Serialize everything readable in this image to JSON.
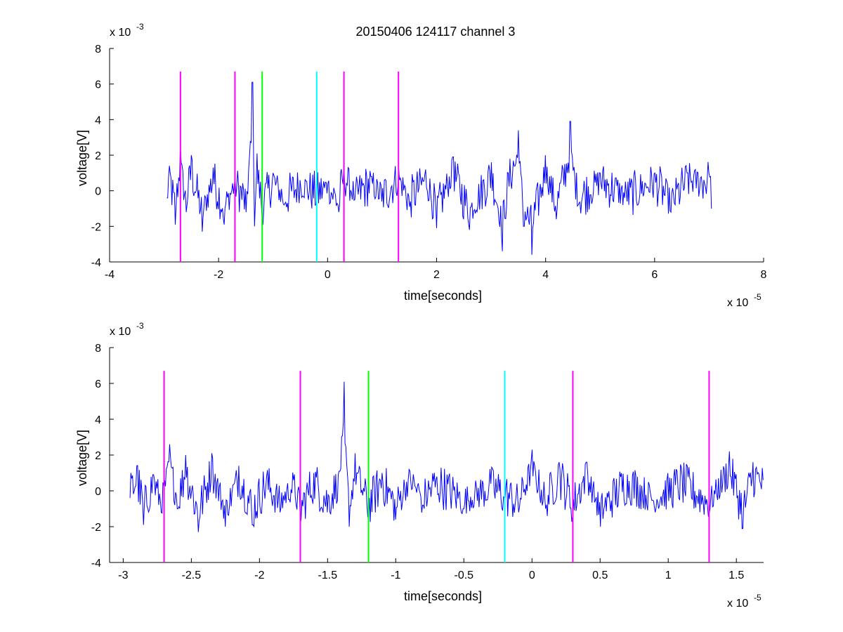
{
  "figure_title": "20150406 124117 channel 3",
  "colors": {
    "signal": "#0000ff",
    "marker_magenta": "#ff00ff",
    "marker_green": "#00ff00",
    "marker_cyan": "#00ffff",
    "axis": "#000000"
  },
  "chart_data": [
    {
      "type": "line",
      "title": "20150406 124117 channel 3",
      "xlabel": "time[seconds]",
      "ylabel": "voltage[V]",
      "x_multiplier": "x 10",
      "x_exponent": "-5",
      "y_multiplier": "x 10",
      "y_exponent": "-3",
      "xlim": [
        -4,
        8
      ],
      "ylim": [
        -4,
        8
      ],
      "x_ticks": [
        -4,
        -2,
        0,
        2,
        4,
        6,
        8
      ],
      "x_tick_labels": [
        "-4",
        "-2",
        "0",
        "2",
        "4",
        "6",
        "8"
      ],
      "y_ticks": [
        -4,
        -2,
        0,
        2,
        4,
        6,
        8
      ],
      "y_tick_labels": [
        "-4",
        "-2",
        "0",
        "2",
        "4",
        "6",
        "8"
      ],
      "grid": false,
      "series": [
        {
          "color": "#0000ff",
          "x_range": [
            -2.95,
            7.05
          ],
          "x": [
            -2.95,
            -2.9,
            -2.8,
            -2.7,
            -2.6,
            -2.5,
            -2.3,
            -2.1,
            -1.9,
            -1.7,
            -1.5,
            -1.38,
            -1.34,
            -1.3,
            -1.2,
            -1.0,
            -0.8,
            -0.5,
            -0.2,
            0.0,
            0.2,
            0.3,
            0.5,
            0.8,
            1.0,
            1.3,
            1.5,
            1.8,
            2.0,
            2.3,
            2.6,
            3.0,
            3.2,
            3.35,
            3.5,
            3.6,
            3.75,
            4.0,
            4.2,
            4.45,
            4.6,
            5.0,
            5.5,
            6.0,
            6.3,
            6.6,
            7.0,
            7.05
          ],
          "y": [
            -0.4,
            1.4,
            -1.9,
            2.6,
            -1.2,
            2.0,
            -2.3,
            1.3,
            -1.9,
            0.8,
            -1.2,
            6.1,
            -2.0,
            2.1,
            -1.5,
            1.0,
            -0.8,
            0.6,
            -0.3,
            0.4,
            -1.2,
            1.6,
            -0.5,
            0.8,
            -0.6,
            1.3,
            -0.9,
            1.2,
            -2.1,
            1.9,
            -2.2,
            1.6,
            -3.4,
            1.8,
            3.4,
            -2.0,
            -3.6,
            2.0,
            -1.6,
            3.9,
            -0.8,
            1.0,
            -0.6,
            1.0,
            -1.2,
            1.0,
            1.0,
            -1.0
          ]
        }
      ],
      "markers": [
        {
          "x": -2.7,
          "color": "#ff00ff",
          "y_from": -4,
          "y_to": 6.7
        },
        {
          "x": -1.7,
          "color": "#ff00ff",
          "y_from": -4,
          "y_to": 6.7
        },
        {
          "x": -1.2,
          "color": "#00ff00",
          "y_from": -4,
          "y_to": 6.7
        },
        {
          "x": -0.2,
          "color": "#00ffff",
          "y_from": -4,
          "y_to": 6.7
        },
        {
          "x": 0.3,
          "color": "#ff00ff",
          "y_from": -4,
          "y_to": 6.7
        },
        {
          "x": 1.3,
          "color": "#ff00ff",
          "y_from": -4,
          "y_to": 6.7
        }
      ]
    },
    {
      "type": "line",
      "title": "",
      "xlabel": "time[seconds]",
      "ylabel": "voltage[V]",
      "x_multiplier": "x 10",
      "x_exponent": "-5",
      "y_multiplier": "x 10",
      "y_exponent": "-3",
      "xlim": [
        -3.1,
        1.7
      ],
      "ylim": [
        -4,
        8
      ],
      "x_ticks": [
        -3,
        -2.5,
        -2,
        -1.5,
        -1,
        -0.5,
        0,
        0.5,
        1,
        1.5
      ],
      "x_tick_labels": [
        "-3",
        "-2.5",
        "-2",
        "-1.5",
        "-1",
        "-0.5",
        "0",
        "0.5",
        "1",
        "1.5"
      ],
      "y_ticks": [
        -4,
        -2,
        0,
        2,
        4,
        6,
        8
      ],
      "y_tick_labels": [
        "-4",
        "-2",
        "0",
        "2",
        "4",
        "6",
        "8"
      ],
      "grid": false,
      "series": [
        {
          "color": "#0000ff",
          "x_range": [
            -2.95,
            1.7
          ],
          "x": [
            -2.95,
            -2.9,
            -2.85,
            -2.78,
            -2.72,
            -2.66,
            -2.6,
            -2.54,
            -2.45,
            -2.35,
            -2.25,
            -2.15,
            -2.05,
            -1.95,
            -1.85,
            -1.75,
            -1.7,
            -1.6,
            -1.5,
            -1.42,
            -1.38,
            -1.34,
            -1.3,
            -1.2,
            -1.1,
            -1.0,
            -0.9,
            -0.8,
            -0.7,
            -0.5,
            -0.3,
            -0.2,
            -0.1,
            0.0,
            0.1,
            0.2,
            0.3,
            0.4,
            0.5,
            0.7,
            0.9,
            1.1,
            1.3,
            1.45,
            1.55,
            1.62,
            1.7
          ],
          "y": [
            -0.4,
            1.4,
            -1.9,
            0.9,
            -1.2,
            2.6,
            -1.0,
            2.0,
            -2.3,
            2.1,
            -2.0,
            1.4,
            -1.9,
            0.8,
            -1.2,
            0.6,
            -1.9,
            1.0,
            -1.2,
            0.9,
            6.1,
            -2.0,
            2.1,
            -1.5,
            1.0,
            -1.6,
            1.2,
            -0.8,
            0.8,
            -1.0,
            0.4,
            -0.4,
            -1.2,
            2.3,
            -1.0,
            1.6,
            -1.4,
            1.6,
            -2.0,
            0.9,
            -0.9,
            0.8,
            -1.3,
            2.2,
            -2.1,
            1.6,
            0.6
          ]
        }
      ],
      "markers": [
        {
          "x": -2.7,
          "color": "#ff00ff",
          "y_from": -4,
          "y_to": 6.7
        },
        {
          "x": -1.7,
          "color": "#ff00ff",
          "y_from": -4,
          "y_to": 6.7
        },
        {
          "x": -1.2,
          "color": "#00ff00",
          "y_from": -4,
          "y_to": 6.7
        },
        {
          "x": -0.2,
          "color": "#00ffff",
          "y_from": -4,
          "y_to": 6.7
        },
        {
          "x": 0.3,
          "color": "#ff00ff",
          "y_from": -4,
          "y_to": 6.7
        },
        {
          "x": 1.3,
          "color": "#ff00ff",
          "y_from": -4,
          "y_to": 6.7
        }
      ]
    }
  ]
}
